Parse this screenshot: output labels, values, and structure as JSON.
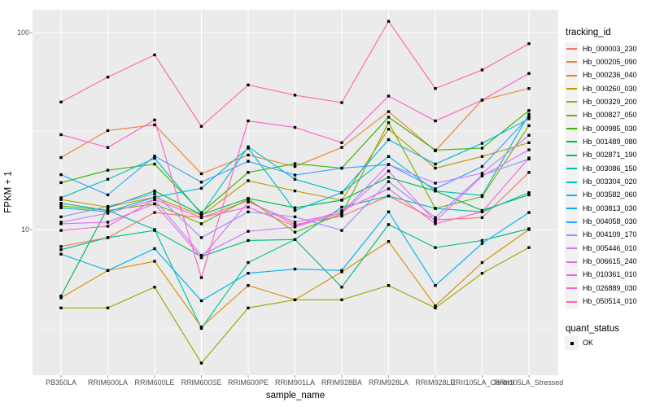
{
  "figure": {
    "background": "#FFFFFF",
    "panel_background": "#EBEBEB",
    "grid_color": "#FFFFFF",
    "marker_color": "#000000",
    "tick_color": "#999999",
    "tick_label_color": "#4D4D4D",
    "axis_title_color": "#000000",
    "legend_key_background": "#F2F2F2"
  },
  "chart_data": {
    "type": "line",
    "title": "",
    "xlabel": "sample_name",
    "ylabel": "FPKM + 1",
    "y_scale": "log10",
    "ylim": [
      1.81,
      131
    ],
    "grid": true,
    "legend_position": "right",
    "marker": "square",
    "y_major_ticks": [
      {
        "label": "100",
        "value": 100
      },
      {
        "label": "10",
        "value": 10
      }
    ],
    "y_minor_ticks": [
      31.62,
      3.162
    ],
    "categories": [
      "PB350LA",
      "RRIM600LA",
      "RRIM600LE",
      "RRIM600SE",
      "RRIM600PE",
      "RRIM901LA",
      "RRIM928BA",
      "RRIM928LA",
      "RRIM928LE",
      "RRII105LA_Control",
      "RRII105LA_Stressed"
    ],
    "series": [
      {
        "name": "Hb_000003_230",
        "color": "#F8766D",
        "quant_status": "OK",
        "values": [
          8.2,
          9.1,
          12.2,
          11.5,
          14.0,
          10.6,
          11.7,
          14.8,
          11.2,
          11.5,
          19.5
        ]
      },
      {
        "name": "Hb_000205_090",
        "color": "#EA8331",
        "quant_status": "OK",
        "values": [
          23.2,
          31.8,
          34.0,
          19.2,
          23.9,
          20.9,
          26.1,
          39.7,
          25.1,
          45.4,
          52.0
        ]
      },
      {
        "name": "Hb_000236_040",
        "color": "#D89000",
        "quant_status": "OK",
        "values": [
          4.5,
          6.2,
          6.9,
          3.2,
          5.2,
          4.4,
          6.1,
          8.7,
          4.1,
          6.8,
          10.0
        ]
      },
      {
        "name": "Hb_000260_030",
        "color": "#C09B00",
        "quant_status": "OK",
        "values": [
          14.2,
          13.0,
          14.6,
          11.8,
          17.7,
          15.7,
          14.1,
          32.3,
          20.5,
          23.5,
          27.6
        ]
      },
      {
        "name": "Hb_000329_200",
        "color": "#A3A500",
        "quant_status": "OK",
        "values": [
          4.0,
          4.0,
          5.1,
          2.1,
          4.0,
          4.4,
          4.4,
          5.2,
          4.0,
          6.0,
          8.1
        ]
      },
      {
        "name": "Hb_000827_050",
        "color": "#7CAE00",
        "quant_status": "OK",
        "values": [
          13.2,
          12.5,
          13.5,
          10.7,
          14.3,
          9.7,
          12.0,
          34.9,
          12.8,
          14.7,
          33.7
        ]
      },
      {
        "name": "Hb_000985_030",
        "color": "#39B600",
        "quant_status": "OK",
        "values": [
          17.3,
          20.0,
          21.5,
          12.2,
          19.5,
          21.6,
          20.5,
          37.2,
          25.3,
          25.9,
          40.2
        ]
      },
      {
        "name": "Hb_001489_080",
        "color": "#00BB4E",
        "quant_status": "OK",
        "values": [
          4.6,
          12.9,
          15.7,
          11.9,
          14.4,
          12.9,
          14.1,
          18.4,
          15.7,
          12.5,
          15.0
        ]
      },
      {
        "name": "Hb_002871_190",
        "color": "#00BF7D",
        "quant_status": "OK",
        "values": [
          7.9,
          9.1,
          9.9,
          7.3,
          8.8,
          8.9,
          5.1,
          10.6,
          8.1,
          8.8,
          10.1
        ]
      },
      {
        "name": "Hb_003086_150",
        "color": "#00C1A3",
        "quant_status": "OK",
        "values": [
          13.6,
          12.5,
          10.0,
          3.15,
          6.8,
          8.9,
          13.0,
          14.8,
          12.8,
          12.3,
          15.4
        ]
      },
      {
        "name": "Hb_003304_020",
        "color": "#00BFC4",
        "quant_status": "OK",
        "values": [
          14.5,
          18.0,
          23.0,
          12.0,
          26.3,
          18.0,
          15.4,
          23.5,
          15.7,
          14.9,
          38.5
        ]
      },
      {
        "name": "Hb_003582_060",
        "color": "#00BBDA",
        "quant_status": "OK",
        "values": [
          12.9,
          12.3,
          14.6,
          16.2,
          25.9,
          12.5,
          15.4,
          28.6,
          21.5,
          27.4,
          36.5
        ]
      },
      {
        "name": "Hb_003813_030",
        "color": "#00B0F6",
        "quant_status": "OK",
        "values": [
          7.5,
          6.2,
          8.0,
          4.35,
          6.0,
          6.3,
          6.2,
          12.3,
          5.2,
          8.5,
          12.2
        ]
      },
      {
        "name": "Hb_004058_030",
        "color": "#35A2FF",
        "quant_status": "OK",
        "values": [
          19.0,
          15.0,
          23.6,
          17.4,
          22.2,
          18.9,
          20.5,
          21.4,
          16.1,
          20.9,
          37.3
        ]
      },
      {
        "name": "Hb_004109_170",
        "color": "#9590FF",
        "quant_status": "OK",
        "values": [
          11.6,
          13.1,
          15.2,
          9.1,
          12.3,
          11.6,
          9.9,
          17.5,
          11.5,
          18.9,
          22.8
        ]
      },
      {
        "name": "Hb_005446_010",
        "color": "#C77CFF",
        "quant_status": "OK",
        "values": [
          10.9,
          12.1,
          14.2,
          7.4,
          9.8,
          10.3,
          12.2,
          21.4,
          17.2,
          19.3,
          30.1
        ]
      },
      {
        "name": "Hb_006615_240",
        "color": "#E76BF3",
        "quant_status": "OK",
        "values": [
          10.7,
          10.9,
          13.5,
          7.2,
          13.8,
          10.9,
          12.1,
          19.8,
          11.0,
          18.7,
          25.4
        ]
      },
      {
        "name": "Hb_010361_010",
        "color": "#FA62DB",
        "quant_status": "OK",
        "values": [
          9.9,
          10.4,
          14.2,
          11.5,
          13.0,
          10.4,
          12.5,
          16.1,
          10.7,
          12.3,
          23.1
        ]
      },
      {
        "name": "Hb_026889_030",
        "color": "#FF61CC",
        "quant_status": "OK",
        "values": [
          30.3,
          26.1,
          36.0,
          5.7,
          35.6,
          33.0,
          27.6,
          47.6,
          35.6,
          45.4,
          62.0
        ]
      },
      {
        "name": "Hb_050514_010",
        "color": "#FF65AE",
        "quant_status": "OK",
        "values": [
          44.4,
          59.4,
          77.0,
          33.4,
          54.2,
          48.1,
          44.1,
          114.0,
          52.0,
          64.6,
          87.8
        ]
      }
    ]
  },
  "legend": {
    "tracking_title": "tracking_id",
    "quant_title": "quant_status",
    "quant_items": [
      {
        "label": "OK",
        "marker": "square",
        "color": "#000000"
      }
    ]
  }
}
